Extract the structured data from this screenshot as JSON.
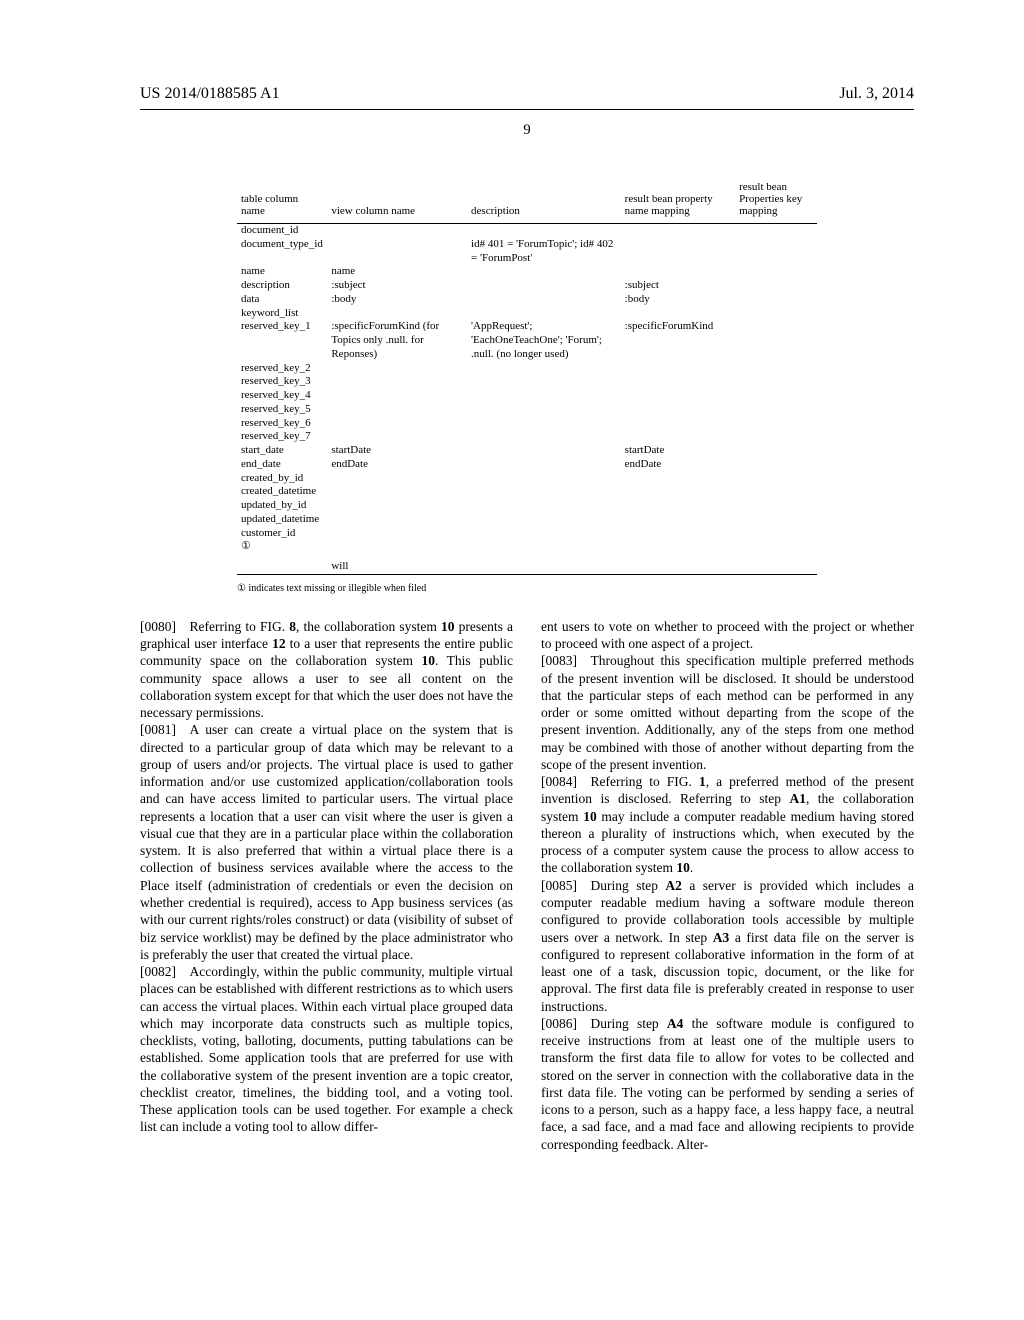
{
  "header": {
    "left": "US 2014/0188585 A1",
    "right": "Jul. 3, 2014",
    "pagenum": "9"
  },
  "table": {
    "headers": [
      "table column name",
      "view column name",
      "description",
      "result bean property name mapping",
      "result bean Properties key mapping"
    ],
    "rows": [
      [
        "document_id",
        "",
        "",
        "",
        ""
      ],
      [
        "document_type_id",
        "",
        "id# 401 = 'ForumTopic'; id# 402 = 'ForumPost'",
        "",
        ""
      ],
      [
        "name",
        "name",
        "",
        "",
        ""
      ],
      [
        "description",
        ":subject",
        "",
        ":subject",
        ""
      ],
      [
        "data",
        ":body",
        "",
        ":body",
        ""
      ],
      [
        "keyword_list",
        "",
        "",
        "",
        ""
      ],
      [
        "reserved_key_1",
        ":specificForumKind (for Topics only .null. for Reponses)",
        "'AppRequest'; 'EachOneTeachOne'; 'Forum'; .null. (no longer used)",
        ":specificForumKind",
        ""
      ],
      [
        "reserved_key_2",
        "",
        "",
        "",
        ""
      ],
      [
        "reserved_key_3",
        "",
        "",
        "",
        ""
      ],
      [
        "reserved_key_4",
        "",
        "",
        "",
        ""
      ],
      [
        "reserved_key_5",
        "",
        "",
        "",
        ""
      ],
      [
        "reserved_key_6",
        "",
        "",
        "",
        ""
      ],
      [
        "reserved_key_7",
        "",
        "",
        "",
        ""
      ],
      [
        "start_date",
        "startDate",
        "",
        "startDate",
        ""
      ],
      [
        "end_date",
        "endDate",
        "",
        "endDate",
        ""
      ],
      [
        "created_by_id",
        "",
        "",
        "",
        ""
      ],
      [
        "created_datetime",
        "",
        "",
        "",
        ""
      ],
      [
        "updated_by_id",
        "",
        "",
        "",
        ""
      ],
      [
        "updated_datetime",
        "",
        "",
        "",
        ""
      ],
      [
        "customer_id",
        "",
        "",
        "",
        ""
      ],
      [
        "①",
        "",
        "",
        "",
        ""
      ],
      [
        "",
        "will",
        "",
        "",
        ""
      ]
    ],
    "footnote": "① indicates text missing or illegible when filed"
  },
  "paragraphs": {
    "left": [
      {
        "num": "[0080]",
        "text": "Referring to FIG. 8, the collaboration system 10 presents a graphical user interface 12 to a user that represents the entire public community space on the collaboration system 10. This public community space allows a user to see all content on the collaboration system except for that which the user does not have the necessary permissions."
      },
      {
        "num": "[0081]",
        "text": "A user can create a virtual place on the system that is directed to a particular group of data which may be relevant to a group of users and/or projects. The virtual place is used to gather information and/or use customized application/collaboration tools and can have access limited to particular users. The virtual place represents a location that a user can visit where the user is given a visual cue that they are in a particular place within the collaboration system. It is also preferred that within a virtual place there is a collection of business services available where the access to the Place itself (administration of credentials or even the decision on whether credential is required), access to App business services (as with our current rights/roles construct) or data (visibility of subset of biz service worklist) may be defined by the place administrator who is preferably the user that created the virtual place."
      },
      {
        "num": "[0082]",
        "text": "Accordingly, within the public community, multiple virtual places can be established with different restrictions as to which users can access the virtual places. Within each virtual place grouped data which may incorporate data constructs such as multiple topics, checklists, voting, balloting, documents, putting tabulations can be established. Some application tools that are preferred for use with the collaborative system of the present invention are a topic creator, checklist creator, timelines, the bidding tool, and a voting tool. These application tools can be used together. For example a check list can include a voting tool to allow differ-"
      }
    ],
    "right": [
      {
        "num": "",
        "text": "ent users to vote on whether to proceed with the project or whether to proceed with one aspect of a project."
      },
      {
        "num": "[0083]",
        "text": "Throughout this specification multiple preferred methods of the present invention will be disclosed. It should be understood that the particular steps of each method can be performed in any order or some omitted without departing from the scope of the present invention. Additionally, any of the steps from one method may be combined with those of another without departing from the scope of the present invention."
      },
      {
        "num": "[0084]",
        "text": "Referring to FIG. 1, a preferred method of the present invention is disclosed. Referring to step A1, the collaboration system 10 may include a computer readable medium having stored thereon a plurality of instructions which, when executed by the process of a computer system cause the process to allow access to the collaboration system 10."
      },
      {
        "num": "[0085]",
        "text": "During step A2 a server is provided which includes a computer readable medium having a software module thereon configured to provide collaboration tools accessible by multiple users over a network. In step A3 a first data file on the server is configured to represent collaborative information in the form of at least one of a task, discussion topic, document, or the like for approval. The first data file is preferably created in response to user instructions."
      },
      {
        "num": "[0086]",
        "text": "During step A4 the software module is configured to receive instructions from at least one of the multiple users to transform the first data file to allow for votes to be collected and stored on the server in connection with the collaborative data in the first data file. The voting can be performed by sending a series of icons to a person, such as a happy face, a less happy face, a neutral face, a sad face, and a mad face and allowing recipients to provide corresponding feedback. Alter-"
      }
    ]
  }
}
